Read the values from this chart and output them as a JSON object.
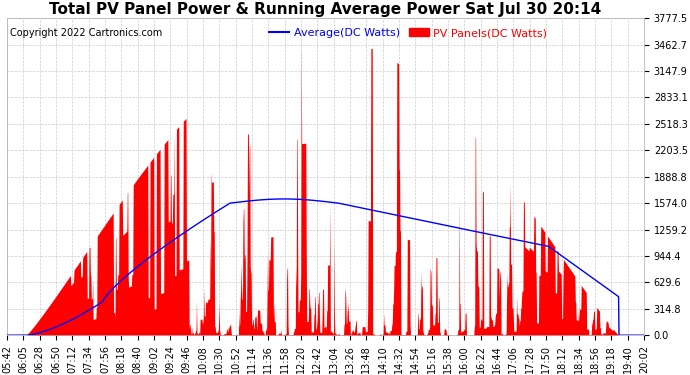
{
  "title": "Total PV Panel Power & Running Average Power Sat Jul 30 20:14",
  "copyright": "Copyright 2022 Cartronics.com",
  "legend_avg": "Average(DC Watts)",
  "legend_pv": "PV Panels(DC Watts)",
  "ymin": 0.0,
  "ymax": 3777.5,
  "yticks": [
    0.0,
    314.8,
    629.6,
    944.4,
    1259.2,
    1574.0,
    1888.8,
    2203.5,
    2518.3,
    2833.1,
    3147.9,
    3462.7,
    3777.5
  ],
  "xtick_labels": [
    "05:42",
    "06:05",
    "06:28",
    "06:50",
    "07:12",
    "07:34",
    "07:56",
    "08:18",
    "08:40",
    "09:02",
    "09:24",
    "09:46",
    "10:08",
    "10:30",
    "10:52",
    "11:14",
    "11:36",
    "11:58",
    "12:20",
    "12:42",
    "13:04",
    "13:26",
    "13:48",
    "14:10",
    "14:32",
    "14:54",
    "15:16",
    "15:38",
    "16:00",
    "16:22",
    "16:44",
    "17:06",
    "17:28",
    "17:50",
    "18:12",
    "18:34",
    "18:56",
    "19:18",
    "19:40",
    "20:02"
  ],
  "background_color": "#ffffff",
  "grid_color": "#cccccc",
  "pv_color": "#ff0000",
  "avg_color": "#0000ff",
  "title_fontsize": 11,
  "copyright_fontsize": 7,
  "tick_fontsize": 7,
  "legend_fontsize": 8
}
